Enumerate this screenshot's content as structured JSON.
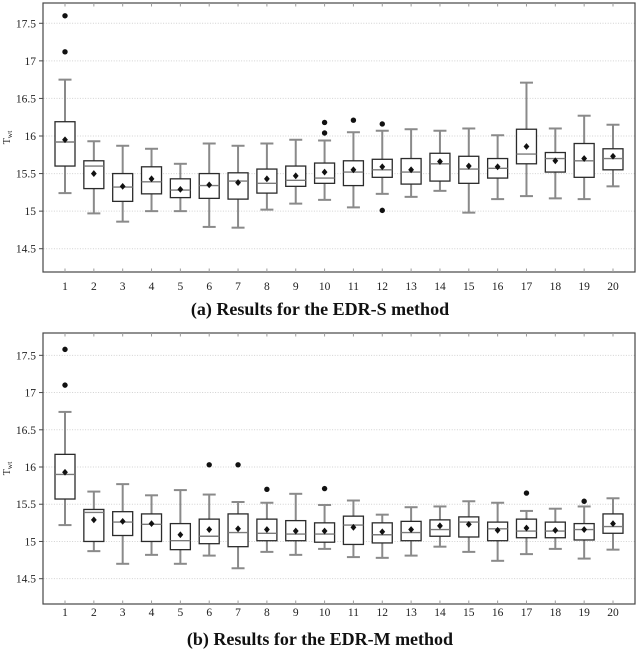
{
  "styles": {
    "frame_color": "#474747",
    "grid_color": "#d2d2d2",
    "minor_tick_color": "#9b9b9b",
    "whisker_color": "#8a8a8a",
    "box_border_color": "#2b2b2b",
    "box_fill": "#ffffff",
    "median_color": "#7a7a7a",
    "mean_color": "#111111",
    "outlier_color": "#111111",
    "tick_label_color": "#222222"
  },
  "chart_data": [
    {
      "type": "boxplot",
      "caption": "(a) Results for the EDR-S method",
      "ylabel": "Twt",
      "ylabel_base": "T",
      "ylabel_sub": "wt",
      "grid": true,
      "legend": "none",
      "x_categories": [
        "1",
        "2",
        "3",
        "4",
        "5",
        "6",
        "7",
        "8",
        "9",
        "10",
        "11",
        "12",
        "13",
        "14",
        "15",
        "16",
        "17",
        "18",
        "19",
        "20"
      ],
      "yticks": [
        {
          "value": 14.5,
          "label": "14.5"
        },
        {
          "value": 15.0,
          "label": "15"
        },
        {
          "value": 15.5,
          "label": "15.5"
        },
        {
          "value": 16.0,
          "label": "16"
        },
        {
          "value": 16.5,
          "label": "16.5"
        },
        {
          "value": 17.0,
          "label": "17"
        },
        {
          "value": 17.5,
          "label": "17.5"
        }
      ],
      "ylim": [
        14.19,
        17.77
      ],
      "boxes": [
        {
          "x": 1,
          "low": 15.24,
          "q1": 15.6,
          "median": 15.92,
          "q3": 16.19,
          "high": 16.75,
          "mean": 15.95,
          "outliers": [
            17.6,
            17.12
          ]
        },
        {
          "x": 2,
          "low": 14.97,
          "q1": 15.3,
          "median": 15.6,
          "q3": 15.67,
          "high": 15.93,
          "mean": 15.5,
          "outliers": []
        },
        {
          "x": 3,
          "low": 14.86,
          "q1": 15.13,
          "median": 15.32,
          "q3": 15.5,
          "high": 15.87,
          "mean": 15.33,
          "outliers": []
        },
        {
          "x": 4,
          "low": 15.0,
          "q1": 15.23,
          "median": 15.39,
          "q3": 15.59,
          "high": 15.83,
          "mean": 15.43,
          "outliers": []
        },
        {
          "x": 5,
          "low": 15.0,
          "q1": 15.18,
          "median": 15.28,
          "q3": 15.43,
          "high": 15.63,
          "mean": 15.29,
          "outliers": []
        },
        {
          "x": 6,
          "low": 14.79,
          "q1": 15.17,
          "median": 15.34,
          "q3": 15.5,
          "high": 15.9,
          "mean": 15.35,
          "outliers": []
        },
        {
          "x": 7,
          "low": 14.78,
          "q1": 15.16,
          "median": 15.4,
          "q3": 15.51,
          "high": 15.87,
          "mean": 15.38,
          "outliers": []
        },
        {
          "x": 8,
          "low": 15.02,
          "q1": 15.24,
          "median": 15.37,
          "q3": 15.56,
          "high": 15.9,
          "mean": 15.43,
          "outliers": []
        },
        {
          "x": 9,
          "low": 15.1,
          "q1": 15.33,
          "median": 15.41,
          "q3": 15.6,
          "high": 15.95,
          "mean": 15.47,
          "outliers": []
        },
        {
          "x": 10,
          "low": 15.15,
          "q1": 15.37,
          "median": 15.44,
          "q3": 15.64,
          "high": 15.94,
          "mean": 15.52,
          "outliers": [
            16.18,
            16.04
          ]
        },
        {
          "x": 11,
          "low": 15.05,
          "q1": 15.34,
          "median": 15.52,
          "q3": 15.67,
          "high": 16.05,
          "mean": 15.55,
          "outliers": [
            16.21
          ]
        },
        {
          "x": 12,
          "low": 15.23,
          "q1": 15.45,
          "median": 15.55,
          "q3": 15.69,
          "high": 16.07,
          "mean": 15.59,
          "outliers": [
            16.16,
            15.01
          ]
        },
        {
          "x": 13,
          "low": 15.19,
          "q1": 15.36,
          "median": 15.52,
          "q3": 15.7,
          "high": 16.09,
          "mean": 15.55,
          "outliers": []
        },
        {
          "x": 14,
          "low": 15.27,
          "q1": 15.4,
          "median": 15.63,
          "q3": 15.77,
          "high": 16.07,
          "mean": 15.66,
          "outliers": []
        },
        {
          "x": 15,
          "low": 14.98,
          "q1": 15.37,
          "median": 15.56,
          "q3": 15.73,
          "high": 16.1,
          "mean": 15.6,
          "outliers": []
        },
        {
          "x": 16,
          "low": 15.16,
          "q1": 15.44,
          "median": 15.57,
          "q3": 15.7,
          "high": 16.01,
          "mean": 15.59,
          "outliers": []
        },
        {
          "x": 17,
          "low": 15.2,
          "q1": 15.63,
          "median": 15.76,
          "q3": 16.09,
          "high": 16.71,
          "mean": 15.86,
          "outliers": []
        },
        {
          "x": 18,
          "low": 15.17,
          "q1": 15.52,
          "median": 15.7,
          "q3": 15.78,
          "high": 16.1,
          "mean": 15.67,
          "outliers": []
        },
        {
          "x": 19,
          "low": 15.16,
          "q1": 15.45,
          "median": 15.67,
          "q3": 15.9,
          "high": 16.27,
          "mean": 15.7,
          "outliers": []
        },
        {
          "x": 20,
          "low": 15.33,
          "q1": 15.55,
          "median": 15.7,
          "q3": 15.83,
          "high": 16.15,
          "mean": 15.73,
          "outliers": []
        }
      ]
    },
    {
      "type": "boxplot",
      "caption": "(b) Results for the EDR-M method",
      "ylabel": "Twt",
      "ylabel_base": "T",
      "ylabel_sub": "wt",
      "grid": true,
      "legend": "none",
      "x_categories": [
        "1",
        "2",
        "3",
        "4",
        "5",
        "6",
        "7",
        "8",
        "9",
        "10",
        "11",
        "12",
        "13",
        "14",
        "15",
        "16",
        "17",
        "18",
        "19",
        "20"
      ],
      "yticks": [
        {
          "value": 14.5,
          "label": "14.5"
        },
        {
          "value": 15.0,
          "label": "15"
        },
        {
          "value": 15.5,
          "label": "15.5"
        },
        {
          "value": 16.0,
          "label": "16"
        },
        {
          "value": 16.5,
          "label": "16.5"
        },
        {
          "value": 17.0,
          "label": "17"
        },
        {
          "value": 17.5,
          "label": "17.5"
        }
      ],
      "ylim": [
        14.16,
        17.8
      ],
      "boxes": [
        {
          "x": 1,
          "low": 15.22,
          "q1": 15.57,
          "median": 15.9,
          "q3": 16.17,
          "high": 16.74,
          "mean": 15.93,
          "outliers": [
            17.58,
            17.1
          ]
        },
        {
          "x": 2,
          "low": 14.87,
          "q1": 15.0,
          "median": 15.39,
          "q3": 15.43,
          "high": 15.67,
          "mean": 15.29,
          "outliers": []
        },
        {
          "x": 3,
          "low": 14.7,
          "q1": 15.08,
          "median": 15.26,
          "q3": 15.4,
          "high": 15.77,
          "mean": 15.27,
          "outliers": []
        },
        {
          "x": 4,
          "low": 14.82,
          "q1": 15.0,
          "median": 15.23,
          "q3": 15.37,
          "high": 15.62,
          "mean": 15.24,
          "outliers": []
        },
        {
          "x": 5,
          "low": 14.7,
          "q1": 14.89,
          "median": 15.01,
          "q3": 15.24,
          "high": 15.69,
          "mean": 15.09,
          "outliers": []
        },
        {
          "x": 6,
          "low": 14.81,
          "q1": 14.97,
          "median": 15.07,
          "q3": 15.3,
          "high": 15.63,
          "mean": 15.16,
          "outliers": [
            16.03
          ]
        },
        {
          "x": 7,
          "low": 14.64,
          "q1": 14.93,
          "median": 15.12,
          "q3": 15.37,
          "high": 15.53,
          "mean": 15.17,
          "outliers": [
            16.03
          ]
        },
        {
          "x": 8,
          "low": 14.86,
          "q1": 15.01,
          "median": 15.11,
          "q3": 15.3,
          "high": 15.52,
          "mean": 15.16,
          "outliers": [
            15.7
          ]
        },
        {
          "x": 9,
          "low": 14.82,
          "q1": 15.01,
          "median": 15.1,
          "q3": 15.28,
          "high": 15.64,
          "mean": 15.14,
          "outliers": []
        },
        {
          "x": 10,
          "low": 14.9,
          "q1": 14.99,
          "median": 15.1,
          "q3": 15.25,
          "high": 15.49,
          "mean": 15.14,
          "outliers": [
            15.71
          ]
        },
        {
          "x": 11,
          "low": 14.79,
          "q1": 14.96,
          "median": 15.22,
          "q3": 15.34,
          "high": 15.55,
          "mean": 15.19,
          "outliers": []
        },
        {
          "x": 12,
          "low": 14.78,
          "q1": 14.98,
          "median": 15.09,
          "q3": 15.25,
          "high": 15.36,
          "mean": 15.13,
          "outliers": []
        },
        {
          "x": 13,
          "low": 14.81,
          "q1": 15.01,
          "median": 15.12,
          "q3": 15.27,
          "high": 15.46,
          "mean": 15.16,
          "outliers": []
        },
        {
          "x": 14,
          "low": 14.93,
          "q1": 15.07,
          "median": 15.16,
          "q3": 15.29,
          "high": 15.47,
          "mean": 15.21,
          "outliers": []
        },
        {
          "x": 15,
          "low": 14.86,
          "q1": 15.06,
          "median": 15.26,
          "q3": 15.33,
          "high": 15.54,
          "mean": 15.23,
          "outliers": []
        },
        {
          "x": 16,
          "low": 14.74,
          "q1": 15.01,
          "median": 15.17,
          "q3": 15.26,
          "high": 15.52,
          "mean": 15.15,
          "outliers": []
        },
        {
          "x": 17,
          "low": 14.83,
          "q1": 15.05,
          "median": 15.14,
          "q3": 15.3,
          "high": 15.41,
          "mean": 15.18,
          "outliers": [
            15.65
          ]
        },
        {
          "x": 18,
          "low": 14.9,
          "q1": 15.05,
          "median": 15.14,
          "q3": 15.26,
          "high": 15.44,
          "mean": 15.15,
          "outliers": []
        },
        {
          "x": 19,
          "low": 14.77,
          "q1": 15.02,
          "median": 15.16,
          "q3": 15.24,
          "high": 15.47,
          "mean": 15.16,
          "outliers": [
            15.54
          ]
        },
        {
          "x": 20,
          "low": 14.89,
          "q1": 15.11,
          "median": 15.2,
          "q3": 15.37,
          "high": 15.58,
          "mean": 15.24,
          "outliers": []
        }
      ]
    }
  ]
}
